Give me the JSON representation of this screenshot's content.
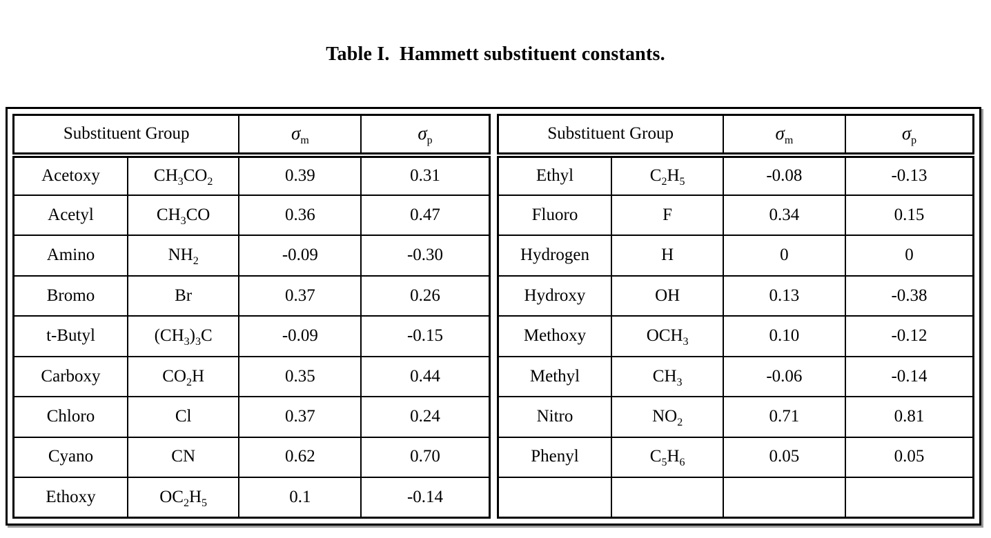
{
  "title": "Table I.  Hammett substituent constants.",
  "header": {
    "group": "Substituent Group",
    "sigma_m": {
      "symbol": "σ",
      "sub": "m"
    },
    "sigma_p": {
      "symbol": "σ",
      "sub": "p"
    }
  },
  "left_table": {
    "rows": [
      {
        "name": "Acetoxy",
        "formula": "CH~3~CO~2~",
        "sigma_m": "0.39",
        "sigma_p": "0.31"
      },
      {
        "name": "Acetyl",
        "formula": "CH~3~CO",
        "sigma_m": "0.36",
        "sigma_p": "0.47"
      },
      {
        "name": "Amino",
        "formula": "NH~2~",
        "sigma_m": "-0.09",
        "sigma_p": "-0.30"
      },
      {
        "name": "Bromo",
        "formula": "Br",
        "sigma_m": "0.37",
        "sigma_p": "0.26"
      },
      {
        "name": "t-Butyl",
        "formula": "(CH~3~)~3~C",
        "sigma_m": "-0.09",
        "sigma_p": "-0.15"
      },
      {
        "name": "Carboxy",
        "formula": "CO~2~H",
        "sigma_m": "0.35",
        "sigma_p": "0.44"
      },
      {
        "name": "Chloro",
        "formula": "Cl",
        "sigma_m": "0.37",
        "sigma_p": "0.24"
      },
      {
        "name": "Cyano",
        "formula": "CN",
        "sigma_m": "0.62",
        "sigma_p": "0.70"
      },
      {
        "name": "Ethoxy",
        "formula": "OC~2~H~5~",
        "sigma_m": "0.1",
        "sigma_p": "-0.14"
      }
    ]
  },
  "right_table": {
    "rows": [
      {
        "name": "Ethyl",
        "formula": "C~2~H~5~",
        "sigma_m": "-0.08",
        "sigma_p": "-0.13"
      },
      {
        "name": "Fluoro",
        "formula": "F",
        "sigma_m": "0.34",
        "sigma_p": "0.15"
      },
      {
        "name": "Hydrogen",
        "formula": "H",
        "sigma_m": "0",
        "sigma_p": "0"
      },
      {
        "name": "Hydroxy",
        "formula": "OH",
        "sigma_m": "0.13",
        "sigma_p": "-0.38"
      },
      {
        "name": "Methoxy",
        "formula": "OCH~3~",
        "sigma_m": "0.10",
        "sigma_p": "-0.12"
      },
      {
        "name": "Methyl",
        "formula": "CH~3~",
        "sigma_m": "-0.06",
        "sigma_p": "-0.14"
      },
      {
        "name": "Nitro",
        "formula": "NO~2~",
        "sigma_m": "0.71",
        "sigma_p": "0.81"
      },
      {
        "name": "Phenyl",
        "formula": "C~5~H~6~",
        "sigma_m": "0.05",
        "sigma_p": "0.05"
      },
      {
        "name": "",
        "formula": "",
        "sigma_m": "",
        "sigma_p": ""
      }
    ]
  }
}
